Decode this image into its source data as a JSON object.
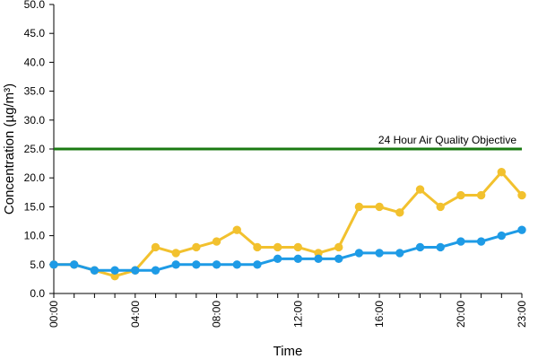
{
  "chart_data": {
    "type": "line",
    "xlabel": "Time",
    "ylabel": "Concentration (µg/m³)",
    "x": [
      0,
      1,
      2,
      3,
      4,
      5,
      6,
      7,
      8,
      9,
      10,
      11,
      12,
      13,
      14,
      15,
      16,
      17,
      18,
      19,
      20,
      21,
      22,
      23
    ],
    "x_tick_labels": [
      {
        "x": 0,
        "label": "00:00"
      },
      {
        "x": 4,
        "label": "04:00"
      },
      {
        "x": 8,
        "label": "08:00"
      },
      {
        "x": 12,
        "label": "12:00"
      },
      {
        "x": 16,
        "label": "16:00"
      },
      {
        "x": 20,
        "label": "20:00"
      },
      {
        "x": 23,
        "label": "23:00"
      }
    ],
    "y_ticks": [
      "0.0",
      "5.0",
      "10.0",
      "15.0",
      "20.0",
      "25.0",
      "30.0",
      "35.0",
      "40.0",
      "45.0",
      "50.0"
    ],
    "ylim": [
      0,
      50
    ],
    "xlim": [
      0,
      23
    ],
    "grid": false,
    "series": [
      {
        "color": "#f2c12e",
        "values": [
          5,
          5,
          4,
          3,
          4,
          8,
          7,
          8,
          9,
          11,
          8,
          8,
          8,
          7,
          8,
          15,
          15,
          14,
          18,
          15,
          17,
          17,
          21,
          17
        ]
      },
      {
        "color": "#1e9be6",
        "values": [
          5,
          5,
          4,
          4,
          4,
          4,
          5,
          5,
          5,
          5,
          5,
          6,
          6,
          6,
          6,
          7,
          7,
          7,
          8,
          8,
          9,
          9,
          10,
          11
        ]
      }
    ],
    "reference_line": {
      "value": 25,
      "label": "24 Hour Air Quality Objective",
      "color": "#1a7a12"
    }
  }
}
